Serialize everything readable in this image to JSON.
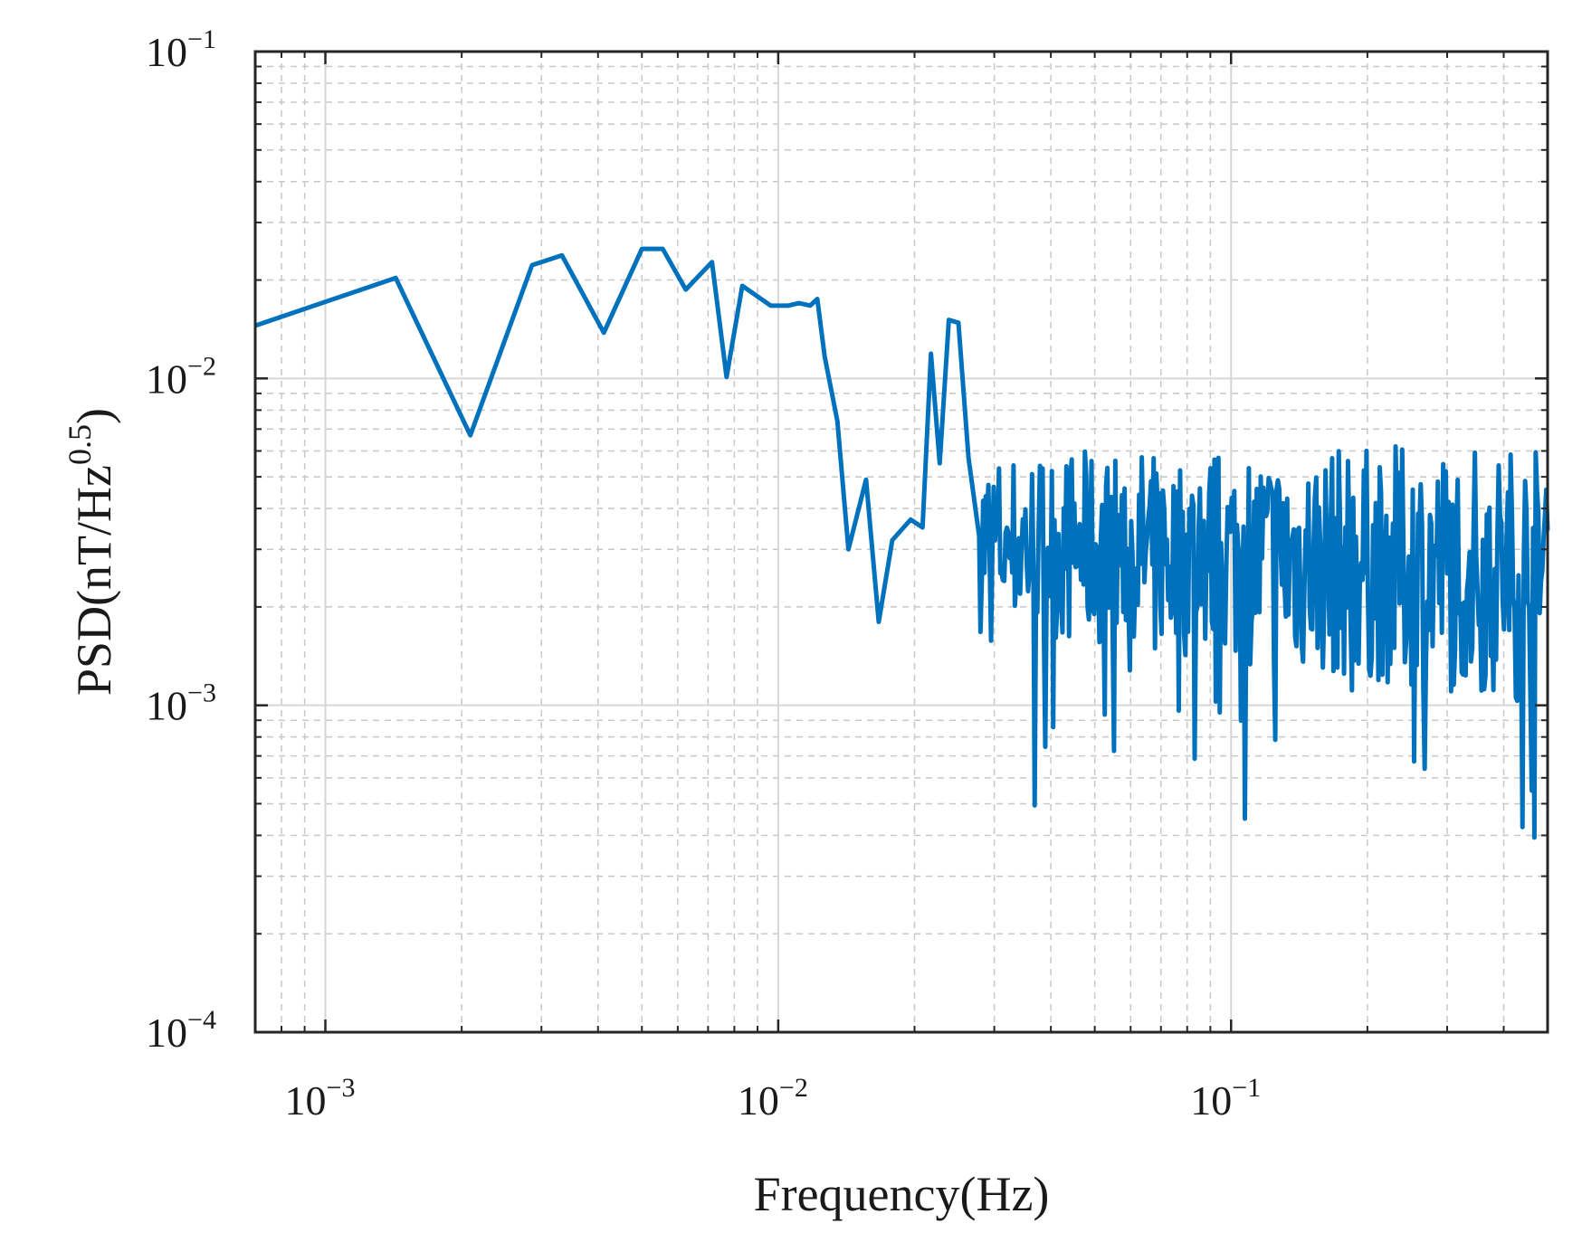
{
  "chart_data": {
    "type": "line",
    "xscale": "log",
    "yscale": "log",
    "xlabel": "Frequency(Hz)",
    "ylabel": {
      "main": "PSD(nT/Hz",
      "sup": "0.5",
      "close": ")"
    },
    "xlim": [
      0.0007,
      0.5
    ],
    "ylim": [
      0.0001,
      0.1
    ],
    "grid": true,
    "minor_grid": true,
    "xticks": [
      {
        "value": 0.001,
        "base": "10",
        "exp": "−3"
      },
      {
        "value": 0.01,
        "base": "10",
        "exp": "−2"
      },
      {
        "value": 0.1,
        "base": "10",
        "exp": "−1"
      }
    ],
    "yticks": [
      {
        "value": 0.0001,
        "base": "10",
        "exp": "−4"
      },
      {
        "value": 0.001,
        "base": "10",
        "exp": "−3"
      },
      {
        "value": 0.01,
        "base": "10",
        "exp": "−2"
      },
      {
        "value": 0.1,
        "base": "10",
        "exp": "−1"
      }
    ],
    "series": [
      {
        "name": "PSD",
        "color": "#0072BD",
        "segments": [
          {
            "x": [
              0.0007,
              0.00143,
              0.00209,
              0.00286,
              0.00333,
              0.00412,
              0.005,
              0.00556,
              0.00625,
              0.00714,
              0.00769,
              0.00833,
              0.00962,
              0.01053,
              0.01111,
              0.01176,
              0.0122,
              0.01266,
              0.01351,
              0.01429,
              0.01563,
              0.01667,
              0.01786,
              0.01961,
              0.02083,
              0.02174,
              0.02273,
              0.02381,
              0.025,
              0.02632,
              0.02778
            ],
            "y": [
              0.0145,
              0.0203,
              0.0067,
              0.0222,
              0.0238,
              0.0138,
              0.0249,
              0.0249,
              0.0187,
              0.0227,
              0.0101,
              0.0192,
              0.0167,
              0.0167,
              0.017,
              0.0167,
              0.0175,
              0.0117,
              0.0074,
              0.003,
              0.0049,
              0.0018,
              0.0032,
              0.0037,
              0.0035,
              0.0119,
              0.0055,
              0.0151,
              0.0148,
              0.0057,
              0.0033
            ]
          },
          {
            "x0": 0.02778,
            "x1": 0.5,
            "n": 430,
            "seed": 7,
            "ylo": 0.00016,
            "yhi": 0.0165
          }
        ]
      }
    ]
  }
}
